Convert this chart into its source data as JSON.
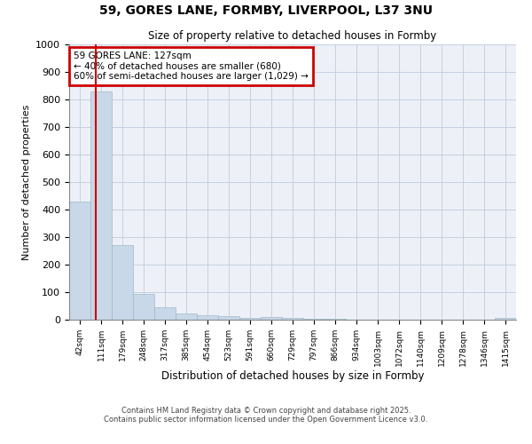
{
  "title1": "59, GORES LANE, FORMBY, LIVERPOOL, L37 3NU",
  "title2": "Size of property relative to detached houses in Formby",
  "xlabel": "Distribution of detached houses by size in Formby",
  "ylabel": "Number of detached properties",
  "bin_labels": [
    "42sqm",
    "111sqm",
    "179sqm",
    "248sqm",
    "317sqm",
    "385sqm",
    "454sqm",
    "523sqm",
    "591sqm",
    "660sqm",
    "729sqm",
    "797sqm",
    "866sqm",
    "934sqm",
    "1003sqm",
    "1072sqm",
    "1140sqm",
    "1209sqm",
    "1278sqm",
    "1346sqm",
    "1415sqm"
  ],
  "bar_heights": [
    430,
    830,
    270,
    95,
    45,
    22,
    15,
    12,
    5,
    10,
    8,
    3,
    3,
    1,
    1,
    1,
    1,
    1,
    1,
    1,
    5
  ],
  "bar_color": "#c8d8e8",
  "bar_edge_color": "#a0b8cc",
  "ylim": [
    0,
    1000
  ],
  "yticks": [
    0,
    100,
    200,
    300,
    400,
    500,
    600,
    700,
    800,
    900,
    1000
  ],
  "property_line_color": "#cc0000",
  "annotation_text": "59 GORES LANE: 127sqm\n← 40% of detached houses are smaller (680)\n60% of semi-detached houses are larger (1,029) →",
  "annotation_box_color": "#cc0000",
  "footer1": "Contains HM Land Registry data © Crown copyright and database right 2025.",
  "footer2": "Contains public sector information licensed under the Open Government Licence v3.0.",
  "background_color": "#edf1f7",
  "grid_color": "#c5cfe0"
}
